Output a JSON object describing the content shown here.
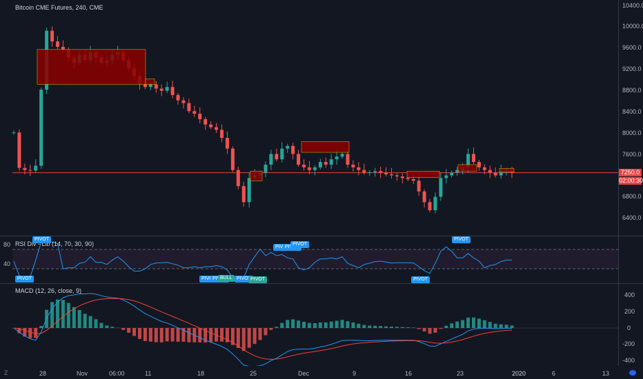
{
  "chart_title": "Bitcoin CME Futures, 240, CME",
  "price_axis": [
    "10400.0",
    "10000.0",
    "9600.0",
    "9200.0",
    "8800.0",
    "8400.0",
    "8000.0",
    "7600.0",
    "7200.0",
    "6800.0",
    "6400.0"
  ],
  "current_price": "7250.0",
  "countdown": "02:00:30",
  "rsi": {
    "title": "RSI Div - Lib (14, 70, 30, 90)",
    "axis": [
      "80",
      "40"
    ],
    "pivots": [
      "PIVOT",
      "PIVOT",
      "PIVOT",
      "PIVOT",
      "PIVOT",
      "PIVOT",
      "PIVOT",
      "PIVOT",
      "PIVOT",
      "PIVOT",
      "BULL",
      "PIVOT"
    ]
  },
  "macd": {
    "title": "MACD (12, 26, close, 9)",
    "axis": [
      "400",
      "200",
      "0",
      "-200",
      "-400"
    ]
  },
  "time_axis": [
    "28",
    "Nov",
    "06:00",
    "11",
    "18",
    "25",
    "Dec",
    "9",
    "16",
    "23",
    "2020",
    "6",
    "13"
  ],
  "scale_button": "Z",
  "colors": {
    "background": "#131722",
    "up_candle": "#26a69a",
    "down_candle": "#ef5350",
    "zone_fill": "#8b0000",
    "zone_border": "#c8a800",
    "price_line": "#e84141",
    "rsi_line": "#2196f3",
    "macd_line": "#2196f3",
    "signal_line": "#f44336"
  },
  "chart_data": {
    "type": "candlestick",
    "title": "Bitcoin CME Futures, 240, CME",
    "ylim": [
      6100,
      10500
    ],
    "current_price": 7250,
    "close_series": [
      8000,
      7340,
      7300,
      7290,
      7380,
      8800,
      9900,
      9700,
      9600,
      9550,
      9400,
      9300,
      9450,
      9350,
      9500,
      9400,
      9300,
      9350,
      9450,
      9500,
      9350,
      9200,
      9050,
      8900,
      8850,
      8900,
      8820,
      8780,
      8850,
      8700,
      8600,
      8550,
      8400,
      8350,
      8250,
      8150,
      8100,
      8050,
      7900,
      7700,
      7300,
      7000,
      6700,
      7150,
      7200,
      7250,
      7400,
      7600,
      7500,
      7700,
      7750,
      7600,
      7400,
      7350,
      7300,
      7350,
      7450,
      7400,
      7500,
      7550,
      7600,
      7400,
      7350,
      7300,
      7250,
      7260,
      7280,
      7250,
      7220,
      7200,
      7180,
      7150,
      7130,
      7100,
      6900,
      6700,
      6550,
      6800,
      7150,
      7200,
      7250,
      7300,
      7350,
      7600,
      7450,
      7350,
      7300,
      7250,
      7200,
      7280,
      7300,
      7250
    ]
  }
}
